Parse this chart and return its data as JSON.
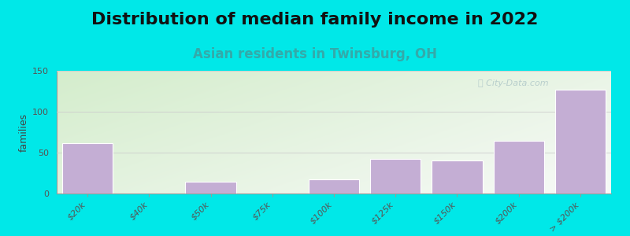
{
  "title": "Distribution of median family income in 2022",
  "subtitle": "Asian residents in Twinsburg, OH",
  "watermark": "ⓘ City-Data.com",
  "ylabel": "families",
  "categories": [
    "$20k",
    "$40k",
    "$50k",
    "$75k",
    "$100k",
    "$125k",
    "$150k",
    "$200k",
    "> $200k"
  ],
  "values": [
    62,
    0,
    14,
    0,
    17,
    42,
    40,
    64,
    127
  ],
  "bar_color": "#c4aed4",
  "bar_edge_color": "#ffffff",
  "background_outer": "#00e8e8",
  "bg_top_left": "#d4edcc",
  "bg_bottom_right": "#f8faf8",
  "title_fontsize": 16,
  "subtitle_fontsize": 12,
  "subtitle_color": "#33aaaa",
  "ylabel_fontsize": 9,
  "tick_label_fontsize": 8,
  "ylim": [
    0,
    150
  ],
  "yticks": [
    0,
    50,
    100,
    150
  ],
  "grid_color": "#cccccc",
  "watermark_color": "#b0c8c8"
}
